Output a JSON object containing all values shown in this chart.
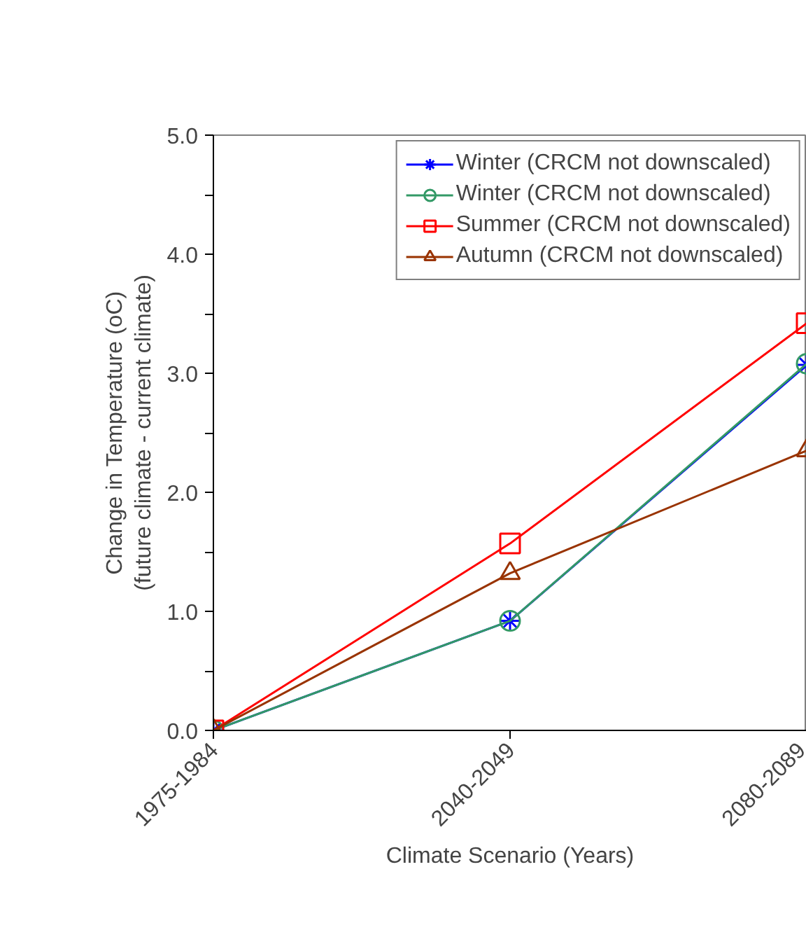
{
  "chart_data": {
    "type": "line",
    "categories": [
      "1975-1984",
      "2040-2049",
      "2080-2089"
    ],
    "xlabel": "Climate Scenario (Years)",
    "ylabel": "Change in Temperature (oC)\n(future climate - current climate)",
    "ylim": [
      0,
      5
    ],
    "yticks": [
      {
        "value": 0,
        "label": "0.0"
      },
      {
        "value": 0.5,
        "label": null
      },
      {
        "value": 1,
        "label": "1.0"
      },
      {
        "value": 1.5,
        "label": null
      },
      {
        "value": 2,
        "label": "2.0"
      },
      {
        "value": 2.5,
        "label": null
      },
      {
        "value": 3,
        "label": "3.0"
      },
      {
        "value": 3.5,
        "label": null
      },
      {
        "value": 4,
        "label": "4.0"
      },
      {
        "value": 4.5,
        "label": null
      },
      {
        "value": 5,
        "label": "5.0"
      }
    ],
    "grid": false,
    "legend": "top right",
    "series": [
      {
        "name": "Winter (CRCM not downscaled)",
        "color": "#0000ff",
        "marker": "cross",
        "values": [
          0,
          0.92,
          3.07
        ]
      },
      {
        "name": "Winter (CRCM not downscaled)",
        "color": "#339966",
        "marker": "circle",
        "values": [
          0,
          0.92,
          3.08
        ]
      },
      {
        "name": "Summer (CRCM not downscaled)",
        "color": "#ff0000",
        "marker": "square",
        "values": [
          0,
          1.57,
          3.42
        ]
      },
      {
        "name": "Autumn (CRCM not downscaled)",
        "color": "#993300",
        "marker": "triangle",
        "values": [
          0,
          1.32,
          2.35
        ]
      }
    ]
  }
}
